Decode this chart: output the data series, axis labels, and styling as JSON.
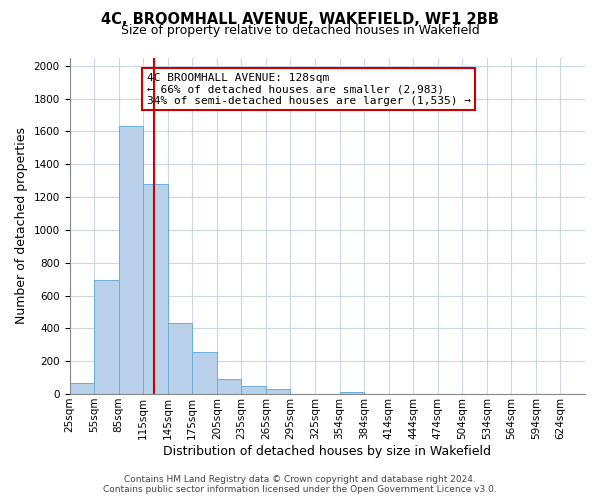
{
  "title": "4C, BROOMHALL AVENUE, WAKEFIELD, WF1 2BB",
  "subtitle": "Size of property relative to detached houses in Wakefield",
  "xlabel": "Distribution of detached houses by size in Wakefield",
  "ylabel": "Number of detached properties",
  "bar_labels": [
    "25sqm",
    "55sqm",
    "85sqm",
    "115sqm",
    "145sqm",
    "175sqm",
    "205sqm",
    "235sqm",
    "265sqm",
    "295sqm",
    "325sqm",
    "354sqm",
    "384sqm",
    "414sqm",
    "444sqm",
    "474sqm",
    "504sqm",
    "534sqm",
    "564sqm",
    "594sqm",
    "624sqm"
  ],
  "bar_values": [
    65,
    695,
    1630,
    1280,
    435,
    255,
    90,
    50,
    28,
    0,
    0,
    15,
    0,
    0,
    0,
    0,
    0,
    0,
    0,
    0,
    0
  ],
  "bar_color": "#b8d0ea",
  "bar_edge_color": "#6aaed6",
  "property_line_x": 128,
  "property_line_color": "#cc0000",
  "annotation_line1": "4C BROOMHALL AVENUE: 128sqm",
  "annotation_line2": "← 66% of detached houses are smaller (2,983)",
  "annotation_line3": "34% of semi-detached houses are larger (1,535) →",
  "annotation_box_color": "#ffffff",
  "annotation_box_edge_color": "#cc0000",
  "ylim": [
    0,
    2050
  ],
  "yticks": [
    0,
    200,
    400,
    600,
    800,
    1000,
    1200,
    1400,
    1600,
    1800,
    2000
  ],
  "footer_line1": "Contains HM Land Registry data © Crown copyright and database right 2024.",
  "footer_line2": "Contains public sector information licensed under the Open Government Licence v3.0.",
  "bg_color": "#ffffff",
  "grid_color": "#c8d8e8",
  "title_fontsize": 10.5,
  "subtitle_fontsize": 9,
  "axis_label_fontsize": 9,
  "tick_fontsize": 7.5,
  "annotation_fontsize": 8,
  "footer_fontsize": 6.5
}
